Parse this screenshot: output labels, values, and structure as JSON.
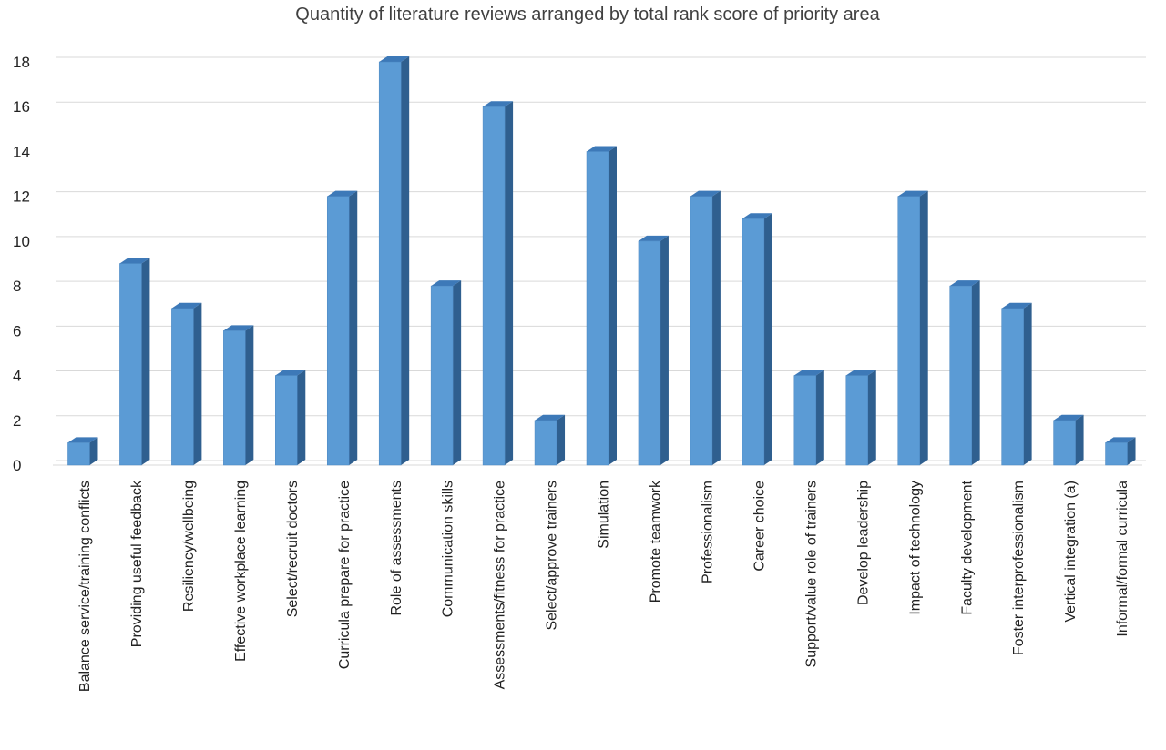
{
  "chart_data": {
    "type": "bar",
    "title": "Quantity of literature reviews arranged by total rank score of priority area",
    "xlabel": "",
    "ylabel": "",
    "ylim": [
      0,
      18
    ],
    "yticks": [
      0,
      2,
      4,
      6,
      8,
      10,
      12,
      14,
      16,
      18
    ],
    "grid": true,
    "legend": "none",
    "bar_style": "3d-column",
    "colors": {
      "front": "#5b9bd5",
      "side": "#2f5f8f",
      "top": "#3d79b8",
      "grid": "#d9d9d9"
    },
    "categories": [
      "Balance service/training conflicts",
      "Providing useful feedback",
      "Resiliency/wellbeing",
      "Effective workplace learning",
      "Select/recruit doctors",
      "Curricula prepare for practice",
      "Role of assessments",
      "Communication skills",
      "Assessments/fitness for practice",
      "Select/approve trainers",
      "Simulation",
      "Promote teamwork",
      "Professionalism",
      "Career choice",
      "Support/value role of trainers",
      "Develop leadership",
      "Impact of technology",
      "Faculty development",
      "Foster interprofessionalism",
      "Vertical integration (a)",
      "Informal/formal curricula"
    ],
    "values": [
      1,
      9,
      7,
      6,
      4,
      12,
      18,
      8,
      16,
      2,
      14,
      10,
      12,
      11,
      4,
      4,
      12,
      8,
      7,
      2,
      1
    ]
  }
}
